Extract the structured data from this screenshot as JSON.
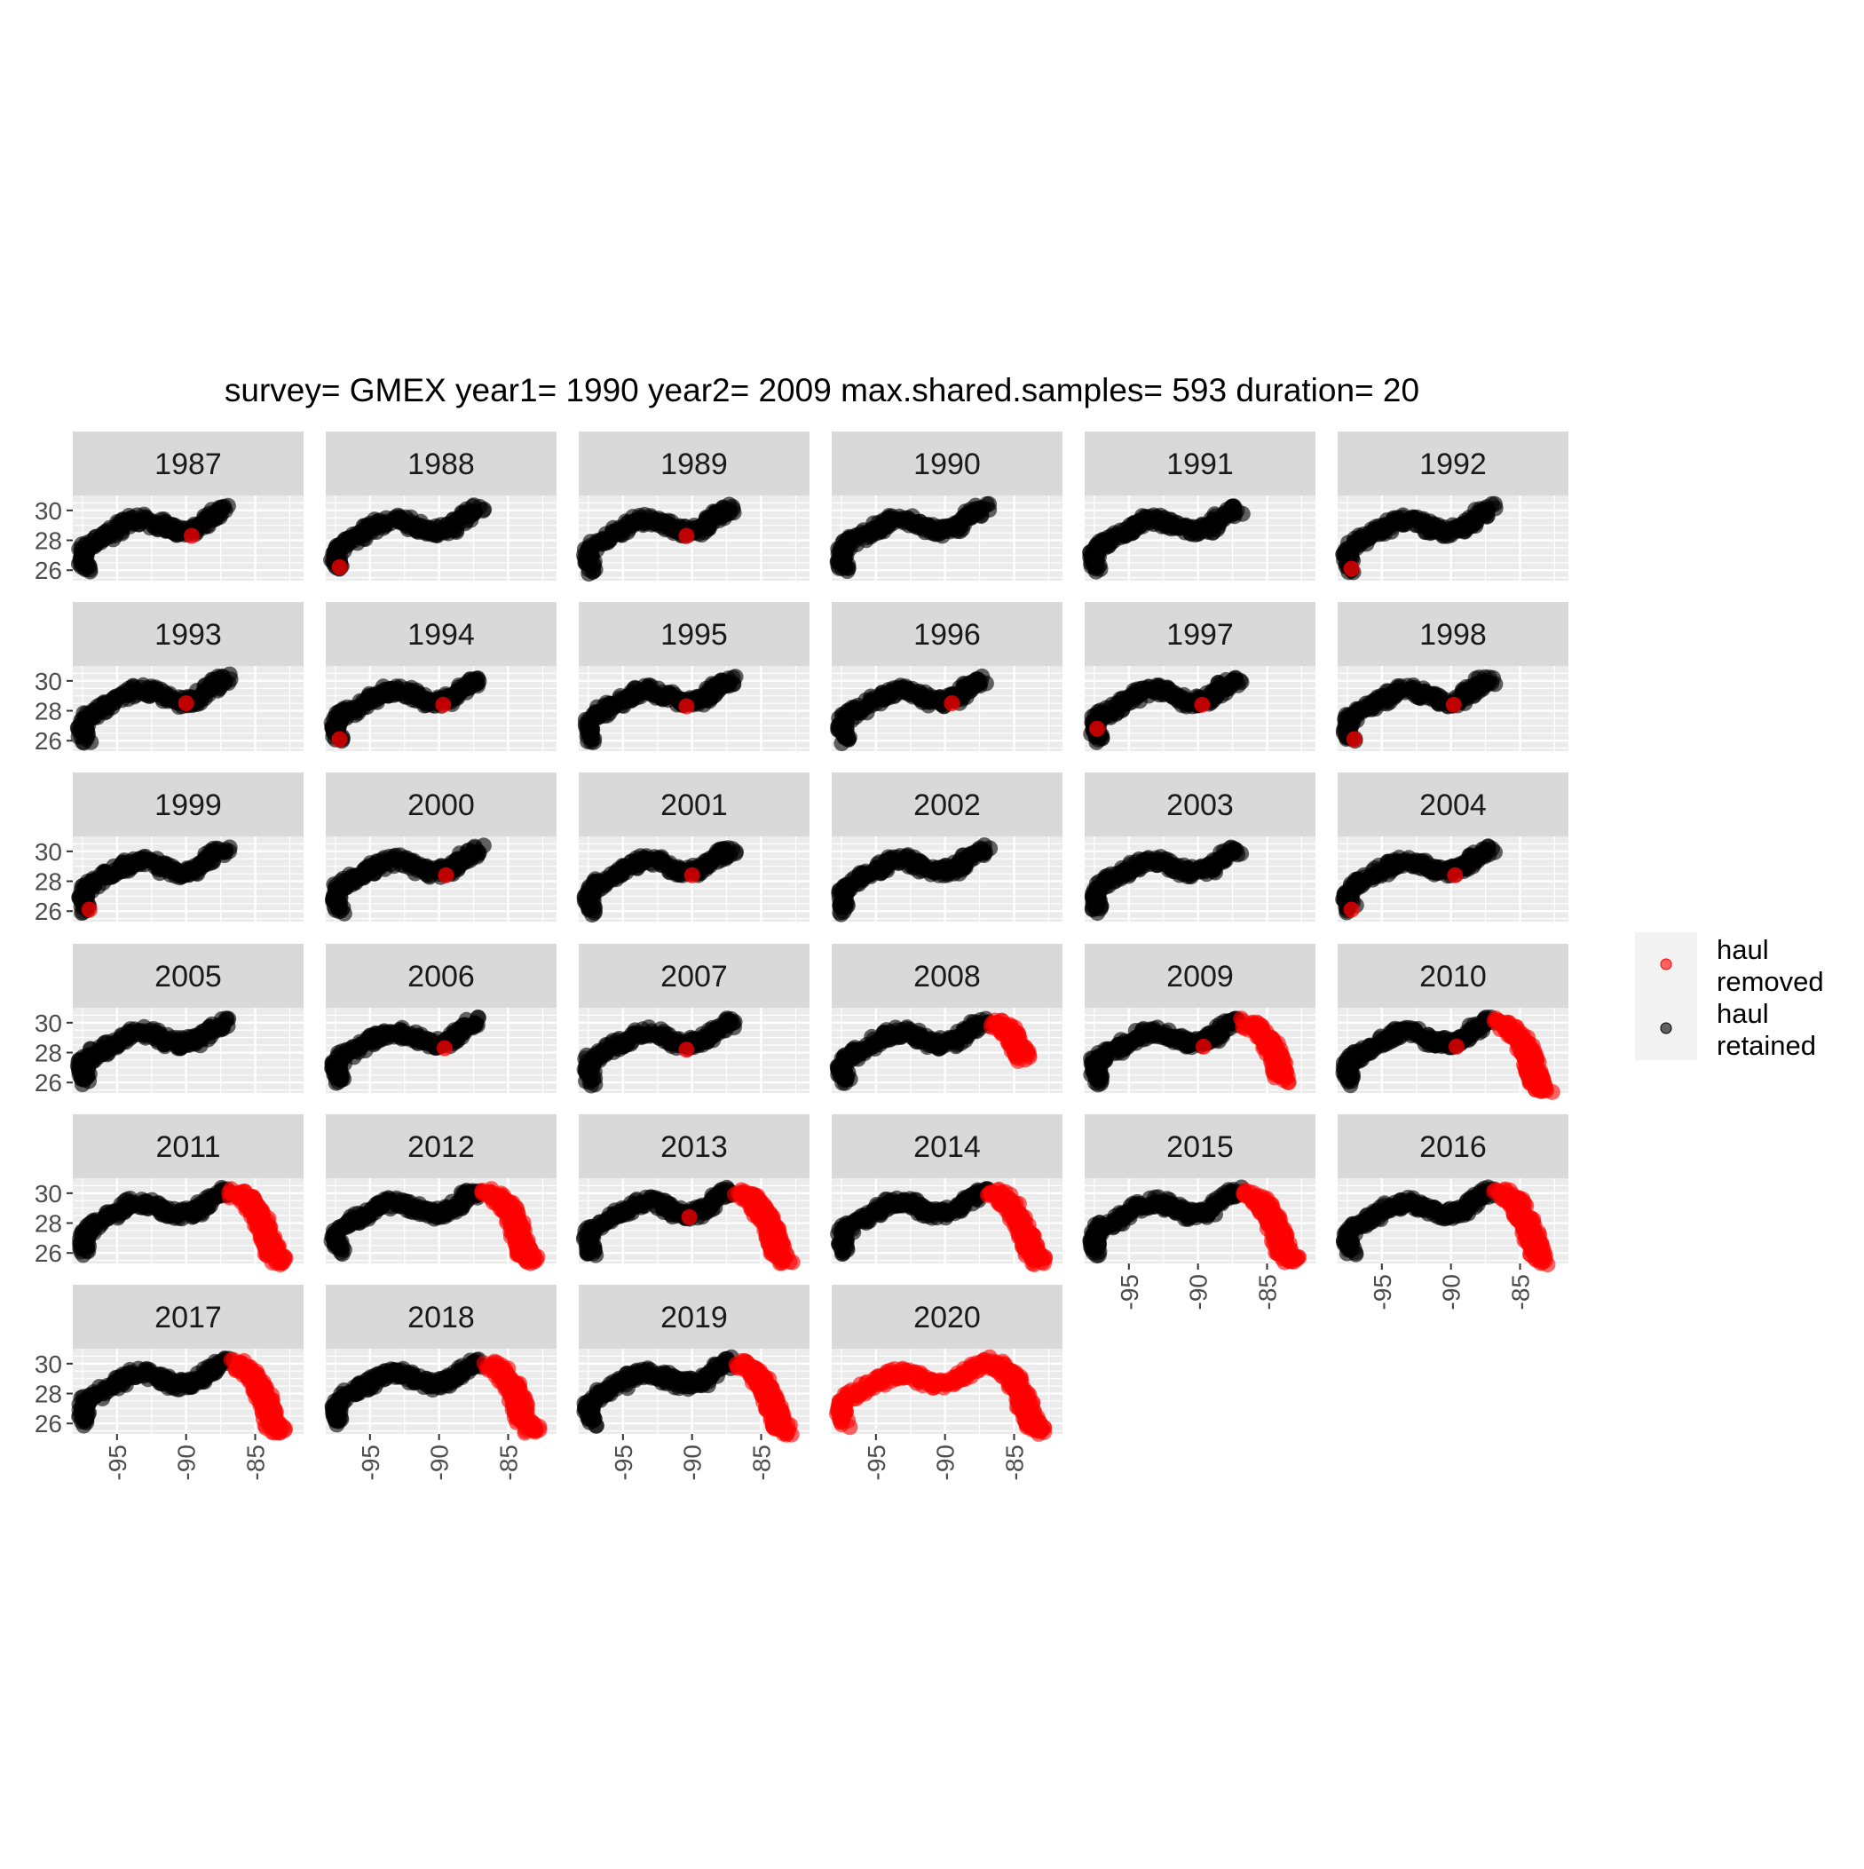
{
  "title": "survey= GMEX year1= 1990 year2= 2009 max.shared.samples= 593 duration= 20",
  "colors": {
    "removed": "#ff0000",
    "retained": "#000000",
    "panel_bg": "#ebebeb",
    "strip_bg": "#d9d9d9",
    "grid": "#ffffff",
    "axis_text": "#4d4d4d"
  },
  "legend": {
    "items": [
      {
        "key": "removed",
        "label_line1": "haul",
        "label_line2": "removed"
      },
      {
        "key": "retained",
        "label_line1": "haul",
        "label_line2": "retained"
      }
    ]
  },
  "chart_data": {
    "type": "scatter",
    "facet_by": "year",
    "facet_layout": {
      "ncol": 6,
      "nrow": 6
    },
    "xlabel": "",
    "ylabel": "",
    "xlim": [
      -98.2,
      -81.5
    ],
    "ylim": [
      25.3,
      31.0
    ],
    "x_ticks": [
      -95,
      -90,
      -85
    ],
    "y_ticks": [
      26,
      28,
      30
    ],
    "x_tick_labels": [
      "-95",
      "-90",
      "-85"
    ],
    "y_tick_labels": [
      "26",
      "28",
      "30"
    ],
    "grid": true,
    "legend_position": "right",
    "series": [
      {
        "key": "removed",
        "name": "haul removed"
      },
      {
        "key": "retained",
        "name": "haul retained"
      }
    ],
    "retained_track": [
      [
        -97.2,
        26.1
      ],
      [
        -97.4,
        26.5
      ],
      [
        -97.5,
        27.0
      ],
      [
        -97.3,
        27.5
      ],
      [
        -96.8,
        27.8
      ],
      [
        -96.2,
        28.1
      ],
      [
        -95.6,
        28.4
      ],
      [
        -95.0,
        28.7
      ],
      [
        -94.5,
        29.0
      ],
      [
        -93.8,
        29.3
      ],
      [
        -93.0,
        29.4
      ],
      [
        -92.3,
        29.2
      ],
      [
        -91.6,
        28.9
      ],
      [
        -91.0,
        28.7
      ],
      [
        -90.4,
        28.6
      ],
      [
        -89.8,
        28.7
      ],
      [
        -89.2,
        28.8
      ],
      [
        -88.7,
        29.2
      ],
      [
        -88.2,
        29.6
      ],
      [
        -87.7,
        29.9
      ],
      [
        -87.1,
        30.1
      ]
    ],
    "east_track": [
      [
        -86.4,
        30.0
      ],
      [
        -85.8,
        29.7
      ],
      [
        -85.3,
        29.3
      ],
      [
        -84.9,
        28.7
      ],
      [
        -84.5,
        28.0
      ],
      [
        -84.2,
        27.3
      ],
      [
        -84.0,
        26.6
      ],
      [
        -83.7,
        26.0
      ],
      [
        -83.2,
        25.5
      ]
    ],
    "panels": [
      {
        "year": "1987",
        "east_extent": 0.0,
        "removed_spots": [
          [
            -89.6,
            28.3
          ]
        ]
      },
      {
        "year": "1988",
        "east_extent": 0.0,
        "removed_spots": [
          [
            -97.2,
            26.2
          ]
        ]
      },
      {
        "year": "1989",
        "east_extent": 0.0,
        "removed_spots": [
          [
            -90.4,
            28.3
          ]
        ]
      },
      {
        "year": "1990",
        "east_extent": 0.0,
        "removed_spots": []
      },
      {
        "year": "1991",
        "east_extent": 0.0,
        "removed_spots": []
      },
      {
        "year": "1992",
        "east_extent": 0.0,
        "removed_spots": [
          [
            -97.2,
            26.1
          ]
        ]
      },
      {
        "year": "1993",
        "east_extent": 0.0,
        "removed_spots": [
          [
            -90.0,
            28.5
          ]
        ]
      },
      {
        "year": "1994",
        "east_extent": 0.0,
        "removed_spots": [
          [
            -97.2,
            26.1
          ],
          [
            -89.7,
            28.4
          ]
        ]
      },
      {
        "year": "1995",
        "east_extent": 0.0,
        "removed_spots": [
          [
            -90.4,
            28.3
          ]
        ]
      },
      {
        "year": "1996",
        "east_extent": 0.0,
        "removed_spots": [
          [
            -89.5,
            28.5
          ]
        ]
      },
      {
        "year": "1997",
        "east_extent": 0.0,
        "removed_spots": [
          [
            -97.3,
            26.8
          ],
          [
            -89.7,
            28.4
          ]
        ]
      },
      {
        "year": "1998",
        "east_extent": 0.0,
        "removed_spots": [
          [
            -97.0,
            26.1
          ],
          [
            -89.8,
            28.4
          ]
        ]
      },
      {
        "year": "1999",
        "east_extent": 0.0,
        "removed_spots": [
          [
            -97.0,
            26.1
          ]
        ]
      },
      {
        "year": "2000",
        "east_extent": 0.0,
        "removed_spots": [
          [
            -89.5,
            28.4
          ]
        ]
      },
      {
        "year": "2001",
        "east_extent": 0.0,
        "removed_spots": [
          [
            -90.0,
            28.4
          ]
        ]
      },
      {
        "year": "2002",
        "east_extent": 0.0,
        "removed_spots": []
      },
      {
        "year": "2003",
        "east_extent": 0.0,
        "removed_spots": []
      },
      {
        "year": "2004",
        "east_extent": 0.0,
        "removed_spots": [
          [
            -97.2,
            26.1
          ],
          [
            -89.7,
            28.4
          ]
        ]
      },
      {
        "year": "2005",
        "east_extent": 0.0,
        "removed_spots": []
      },
      {
        "year": "2006",
        "east_extent": 0.0,
        "removed_spots": [
          [
            -89.6,
            28.3
          ]
        ]
      },
      {
        "year": "2007",
        "east_extent": 0.0,
        "removed_spots": [
          [
            -90.4,
            28.2
          ]
        ]
      },
      {
        "year": "2008",
        "east_extent": 0.55,
        "removed_spots": []
      },
      {
        "year": "2009",
        "east_extent": 0.85,
        "removed_spots": [
          [
            -89.6,
            28.4
          ]
        ]
      },
      {
        "year": "2010",
        "east_extent": 1.0,
        "removed_spots": [
          [
            -89.6,
            28.4
          ]
        ]
      },
      {
        "year": "2011",
        "east_extent": 1.0,
        "removed_spots": []
      },
      {
        "year": "2012",
        "east_extent": 1.0,
        "removed_spots": []
      },
      {
        "year": "2013",
        "east_extent": 1.0,
        "removed_spots": [
          [
            -90.2,
            28.4
          ]
        ]
      },
      {
        "year": "2014",
        "east_extent": 1.0,
        "removed_spots": []
      },
      {
        "year": "2015",
        "east_extent": 1.0,
        "removed_spots": []
      },
      {
        "year": "2016",
        "east_extent": 1.0,
        "removed_spots": []
      },
      {
        "year": "2017",
        "east_extent": 1.0,
        "removed_spots": []
      },
      {
        "year": "2018",
        "east_extent": 1.0,
        "removed_spots": []
      },
      {
        "year": "2019",
        "east_extent": 1.0,
        "removed_spots": []
      },
      {
        "year": "2020",
        "east_extent": 1.0,
        "all_removed": true,
        "removed_spots": []
      }
    ]
  }
}
